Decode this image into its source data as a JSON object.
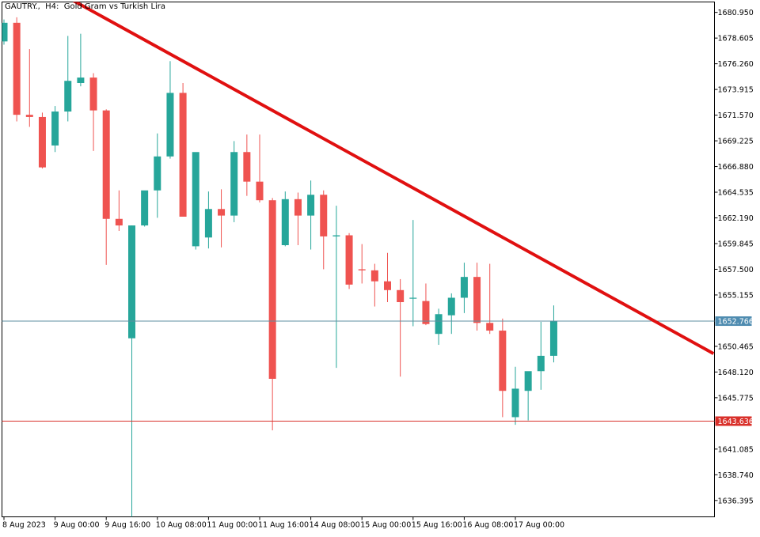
{
  "header": {
    "symbol_text": "GAUTRY.,  H4:  Gold Gram vs Turkish Lira"
  },
  "colors": {
    "bull": "#26a69a",
    "bear": "#ef5350",
    "trendline": "#e01010",
    "price_line": "#5f8fa0",
    "support_line": "#d9302a",
    "support_tag_bg": "#d9302a",
    "price_tag_bg": "#4f8cb0",
    "axis": "#000000"
  },
  "chart_data": {
    "type": "candlestick",
    "title": "GAUTRY.,  H4:  Gold Gram vs Turkish Lira",
    "xlabel": "",
    "ylabel": "",
    "ylim": [
      1634.9,
      1681.9
    ],
    "y_ticks": [
      "1680.950",
      "1678.605",
      "1676.260",
      "1673.915",
      "1671.570",
      "1669.225",
      "1666.880",
      "1664.535",
      "1662.190",
      "1659.845",
      "1657.500",
      "1655.155",
      "1652.766",
      "1650.465",
      "1648.120",
      "1645.775",
      "1643.636",
      "1641.085",
      "1638.740",
      "1636.395"
    ],
    "x_tick_labels": [
      {
        "index": 0,
        "label": "8 Aug 2023"
      },
      {
        "index": 4,
        "label": "9 Aug 00:00"
      },
      {
        "index": 8,
        "label": "9 Aug 16:00"
      },
      {
        "index": 12,
        "label": "10 Aug 08:00"
      },
      {
        "index": 16,
        "label": "11 Aug 00:00"
      },
      {
        "index": 20,
        "label": "11 Aug 16:00"
      },
      {
        "index": 24,
        "label": "14 Aug 08:00"
      },
      {
        "index": 28,
        "label": "15 Aug 00:00"
      },
      {
        "index": 32,
        "label": "15 Aug 16:00"
      },
      {
        "index": 36,
        "label": "16 Aug 08:00"
      },
      {
        "index": 40,
        "label": "17 Aug 00:00"
      }
    ],
    "candles": [
      {
        "o": 1678.3,
        "h": 1680.3,
        "l": 1678.0,
        "c": 1680.0
      },
      {
        "o": 1680.0,
        "h": 1680.5,
        "l": 1671.0,
        "c": 1671.6
      },
      {
        "o": 1671.6,
        "h": 1677.6,
        "l": 1670.5,
        "c": 1671.4
      },
      {
        "o": 1671.4,
        "h": 1671.8,
        "l": 1666.7,
        "c": 1666.8
      },
      {
        "o": 1668.8,
        "h": 1672.4,
        "l": 1668.2,
        "c": 1671.9
      },
      {
        "o": 1671.9,
        "h": 1678.8,
        "l": 1671.0,
        "c": 1674.7
      },
      {
        "o": 1674.5,
        "h": 1679.0,
        "l": 1674.2,
        "c": 1675.0
      },
      {
        "o": 1675.0,
        "h": 1675.4,
        "l": 1668.3,
        "c": 1672.0
      },
      {
        "o": 1672.0,
        "h": 1672.1,
        "l": 1657.9,
        "c": 1662.1
      },
      {
        "o": 1662.1,
        "h": 1664.7,
        "l": 1661.0,
        "c": 1661.5
      },
      {
        "o": 1651.2,
        "h": 1661.5,
        "l": 1633.4,
        "c": 1661.5
      },
      {
        "o": 1661.5,
        "h": 1664.5,
        "l": 1661.4,
        "c": 1664.7
      },
      {
        "o": 1664.7,
        "h": 1669.9,
        "l": 1662.2,
        "c": 1667.8
      },
      {
        "o": 1667.8,
        "h": 1676.5,
        "l": 1667.6,
        "c": 1673.6
      },
      {
        "o": 1673.6,
        "h": 1674.5,
        "l": 1662.3,
        "c": 1662.3
      },
      {
        "o": 1659.6,
        "h": 1668.1,
        "l": 1659.3,
        "c": 1668.2
      },
      {
        "o": 1660.4,
        "h": 1664.6,
        "l": 1659.4,
        "c": 1663.0
      },
      {
        "o": 1663.0,
        "h": 1664.8,
        "l": 1659.5,
        "c": 1662.4
      },
      {
        "o": 1662.4,
        "h": 1669.2,
        "l": 1661.8,
        "c": 1668.2
      },
      {
        "o": 1668.2,
        "h": 1669.8,
        "l": 1664.2,
        "c": 1665.5
      },
      {
        "o": 1665.5,
        "h": 1669.8,
        "l": 1663.6,
        "c": 1663.8
      },
      {
        "o": 1663.8,
        "h": 1664.0,
        "l": 1642.8,
        "c": 1647.5
      },
      {
        "o": 1659.7,
        "h": 1664.6,
        "l": 1659.6,
        "c": 1663.9
      },
      {
        "o": 1663.9,
        "h": 1664.5,
        "l": 1659.7,
        "c": 1662.4
      },
      {
        "o": 1662.4,
        "h": 1665.6,
        "l": 1659.3,
        "c": 1664.3
      },
      {
        "o": 1664.3,
        "h": 1664.7,
        "l": 1657.5,
        "c": 1660.5
      },
      {
        "o": 1660.5,
        "h": 1663.3,
        "l": 1648.5,
        "c": 1660.6
      },
      {
        "o": 1660.6,
        "h": 1660.8,
        "l": 1655.7,
        "c": 1656.1
      },
      {
        "o": 1657.5,
        "h": 1659.8,
        "l": 1656.2,
        "c": 1657.4
      },
      {
        "o": 1657.4,
        "h": 1658.0,
        "l": 1654.1,
        "c": 1656.4
      },
      {
        "o": 1656.4,
        "h": 1659.0,
        "l": 1654.5,
        "c": 1655.6
      },
      {
        "o": 1655.6,
        "h": 1656.6,
        "l": 1647.7,
        "c": 1654.5
      },
      {
        "o": 1654.9,
        "h": 1662.0,
        "l": 1652.3,
        "c": 1654.9
      },
      {
        "o": 1654.6,
        "h": 1656.2,
        "l": 1652.4,
        "c": 1652.5
      },
      {
        "o": 1651.6,
        "h": 1653.9,
        "l": 1650.6,
        "c": 1653.4
      },
      {
        "o": 1653.3,
        "h": 1655.3,
        "l": 1651.6,
        "c": 1654.9
      },
      {
        "o": 1654.9,
        "h": 1658.1,
        "l": 1653.5,
        "c": 1656.8
      },
      {
        "o": 1656.8,
        "h": 1658.1,
        "l": 1651.9,
        "c": 1652.6
      },
      {
        "o": 1652.6,
        "h": 1658.0,
        "l": 1651.6,
        "c": 1651.9
      },
      {
        "o": 1651.9,
        "h": 1653.0,
        "l": 1644.0,
        "c": 1646.4
      },
      {
        "o": 1644.0,
        "h": 1648.6,
        "l": 1643.3,
        "c": 1646.6
      },
      {
        "o": 1646.4,
        "h": 1648.1,
        "l": 1643.7,
        "c": 1648.2
      },
      {
        "o": 1648.2,
        "h": 1652.7,
        "l": 1646.5,
        "c": 1649.6
      },
      {
        "o": 1649.6,
        "h": 1654.2,
        "l": 1649.0,
        "c": 1652.8
      }
    ],
    "price_line": {
      "value": 1652.766,
      "label": "1652.766"
    },
    "support_line": {
      "value": 1643.636,
      "label": "1643.636"
    },
    "trendline": {
      "x_start": 5.3,
      "y_start": 1682.1,
      "x_end": 55.5,
      "y_end": 1649.8
    },
    "grid": false,
    "legend": "none"
  }
}
